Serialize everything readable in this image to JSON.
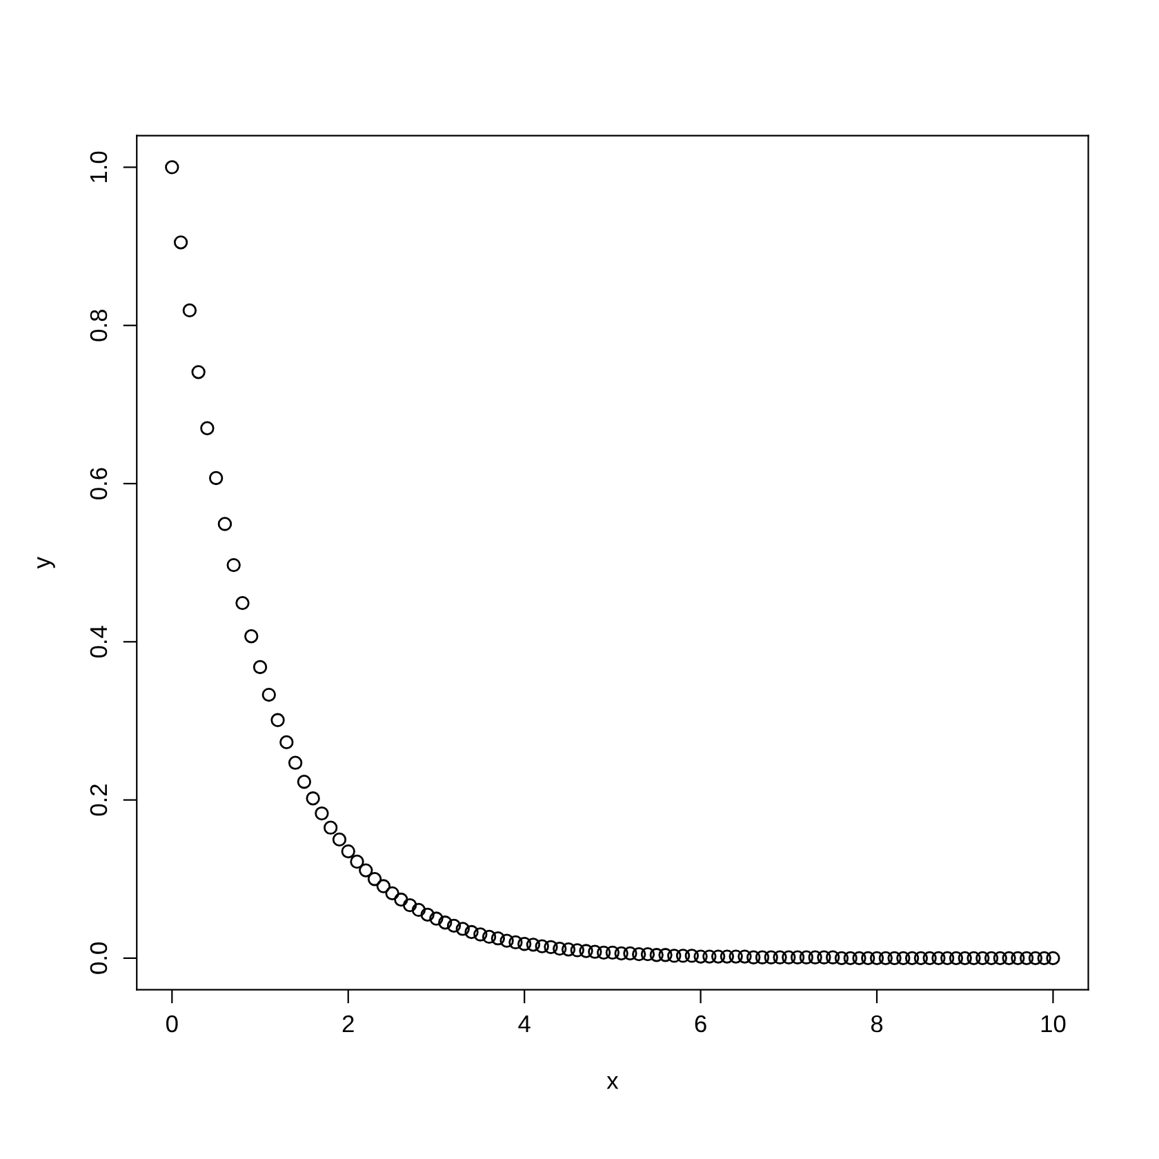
{
  "chart_data": {
    "type": "scatter",
    "xlabel": "x",
    "ylabel": "y",
    "x": [
      0,
      0.1,
      0.2,
      0.3,
      0.4,
      0.5,
      0.6,
      0.7,
      0.8,
      0.9,
      1,
      1.1,
      1.2,
      1.3,
      1.4,
      1.5,
      1.6,
      1.7,
      1.8,
      1.9,
      2,
      2.1,
      2.2,
      2.3,
      2.4,
      2.5,
      2.6,
      2.7,
      2.8,
      2.9,
      3,
      3.1,
      3.2,
      3.3,
      3.4,
      3.5,
      3.6,
      3.7,
      3.8,
      3.9,
      4,
      4.1,
      4.2,
      4.3,
      4.4,
      4.5,
      4.6,
      4.7,
      4.8,
      4.9,
      5,
      5.1,
      5.2,
      5.3,
      5.4,
      5.5,
      5.6,
      5.7,
      5.8,
      5.9,
      6,
      6.1,
      6.2,
      6.3,
      6.4,
      6.5,
      6.6,
      6.7,
      6.8,
      6.9,
      7,
      7.1,
      7.2,
      7.3,
      7.4,
      7.5,
      7.6,
      7.7,
      7.8,
      7.9,
      8,
      8.1,
      8.2,
      8.3,
      8.4,
      8.5,
      8.6,
      8.7,
      8.8,
      8.9,
      9,
      9.1,
      9.2,
      9.3,
      9.4,
      9.5,
      9.6,
      9.7,
      9.8,
      9.9,
      10
    ],
    "series": [
      {
        "color": "#000000",
        "values": [
          1.0,
          0.905,
          0.819,
          0.741,
          0.67,
          0.607,
          0.549,
          0.497,
          0.449,
          0.407,
          0.368,
          0.333,
          0.301,
          0.273,
          0.247,
          0.223,
          0.202,
          0.183,
          0.165,
          0.15,
          0.135,
          0.122,
          0.111,
          0.1,
          0.091,
          0.082,
          0.074,
          0.067,
          0.061,
          0.055,
          0.05,
          0.045,
          0.041,
          0.037,
          0.033,
          0.03,
          0.027,
          0.025,
          0.022,
          0.02,
          0.018,
          0.017,
          0.015,
          0.014,
          0.012,
          0.011,
          0.01,
          0.009,
          0.008,
          0.007,
          0.007,
          0.006,
          0.006,
          0.005,
          0.005,
          0.004,
          0.004,
          0.003,
          0.003,
          0.003,
          0.002,
          0.002,
          0.002,
          0.002,
          0.002,
          0.002,
          0.001,
          0.001,
          0.001,
          0.001,
          0.001,
          0.001,
          0.001,
          0.001,
          0.001,
          0.001,
          0,
          0,
          0,
          0,
          0,
          0,
          0,
          0,
          0,
          0,
          0,
          0,
          0,
          0,
          0,
          0,
          0,
          0,
          0,
          0,
          0,
          0,
          0,
          0,
          0
        ]
      }
    ],
    "xlim": [
      -0.4,
      10.4
    ],
    "ylim": [
      -0.04,
      1.04
    ],
    "xticks": [
      0,
      2,
      4,
      6,
      8,
      10
    ],
    "yticks": [
      {
        "value": 0,
        "label": "0.0"
      },
      {
        "value": 0.2,
        "label": "0.2"
      },
      {
        "value": 0.4,
        "label": "0.4"
      },
      {
        "value": 0.6,
        "label": "0.6"
      },
      {
        "value": 0.8,
        "label": "0.8"
      },
      {
        "value": 1,
        "label": "1.0"
      }
    ],
    "marker": "circle",
    "grid": false,
    "legend": false
  }
}
